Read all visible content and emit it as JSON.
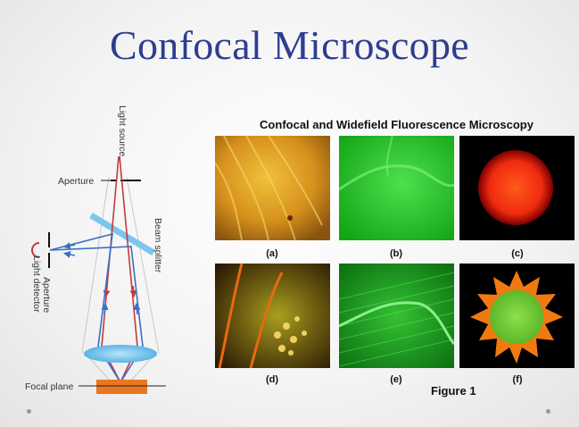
{
  "slide": {
    "title": "Confocal Microscope"
  },
  "diagram": {
    "light_source_label": "Light source",
    "aperture_top_label": "Aperture",
    "beam_splitter_label": "Beam splitter",
    "aperture_detector_label": "Aperture",
    "light_detector_label": "Light detector",
    "focal_plane_label": "Focal plane",
    "colors": {
      "ray_red": "#c23b3b",
      "ray_blue": "#3a6fc4",
      "lens": "#7cc6ee",
      "specimen": "#e8771f"
    }
  },
  "figure": {
    "title": "Confocal and Widefield Fluorescence Microscopy",
    "caption": "Figure 1",
    "panels": [
      {
        "label": "(a)"
      },
      {
        "label": "(b)"
      },
      {
        "label": "(c)"
      },
      {
        "label": "(d)"
      },
      {
        "label": "(e)"
      },
      {
        "label": "(f)"
      }
    ]
  }
}
